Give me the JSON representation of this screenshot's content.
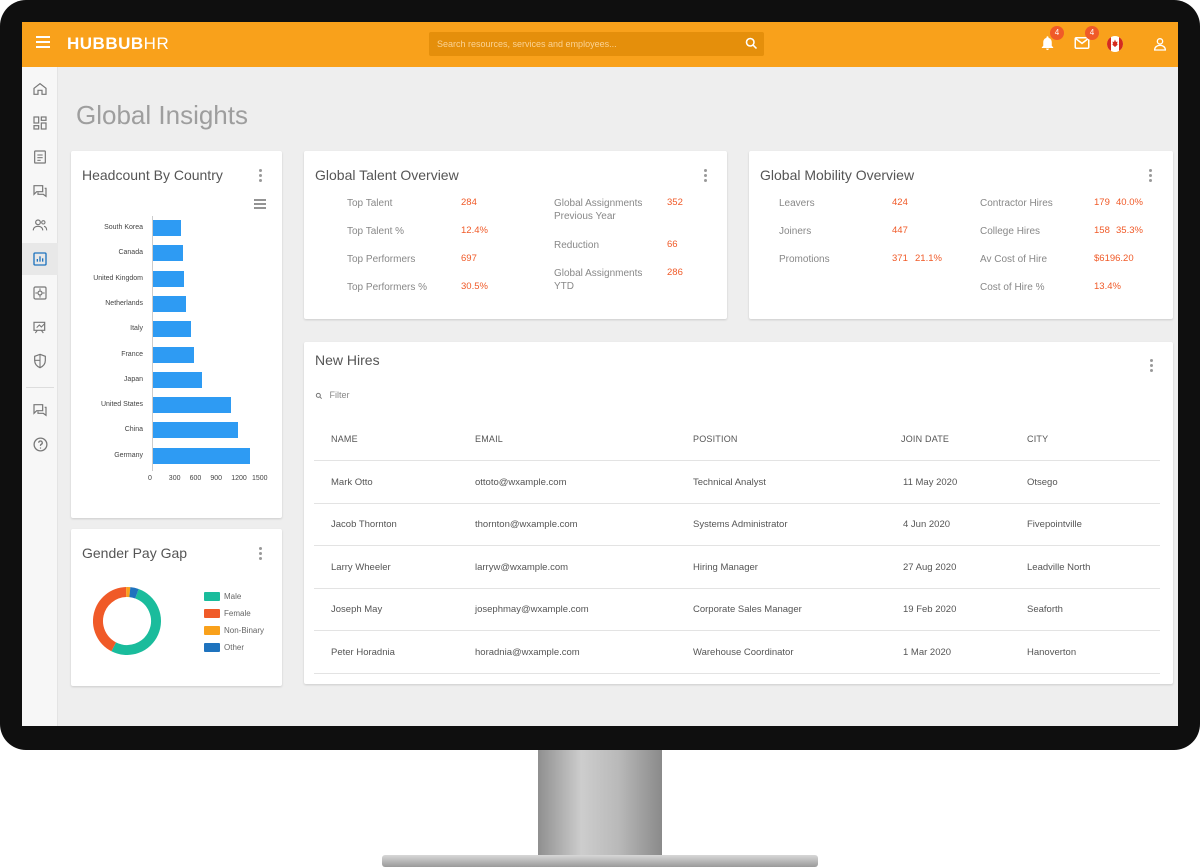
{
  "brand": {
    "name": "HUBBUBHR",
    "name_bold": "HUBBUB",
    "name_thin": "HR",
    "accent": "#f9a11b"
  },
  "search": {
    "placeholder": "Search resources, services and employees..."
  },
  "notifications": {
    "bell_count": "4",
    "mail_count": "4"
  },
  "page": {
    "title": "Global Insights"
  },
  "sidebar": {
    "items": [
      "home-icon",
      "dashboard-icon",
      "document-icon",
      "forum-icon",
      "people-icon",
      "chart-icon",
      "settings-icon",
      "learning-icon",
      "security-icon",
      "chat-icon",
      "help-icon"
    ],
    "active": "chart-icon"
  },
  "headcount": {
    "title": "Headcount By Country",
    "chart_data": {
      "type": "bar",
      "orientation": "horizontal",
      "categories": [
        "South Korea",
        "Canada",
        "United Kingdom",
        "Netherlands",
        "Italy",
        "France",
        "Japan",
        "United States",
        "China",
        "Germany"
      ],
      "values": [
        420,
        440,
        460,
        490,
        560,
        600,
        720,
        1140,
        1240,
        1420
      ],
      "xlim": [
        0,
        1500
      ],
      "xticks": [
        "0",
        "300",
        "600",
        "900",
        "1200",
        "1500"
      ],
      "color": "#2e9bf3"
    }
  },
  "pay_gap": {
    "title": "Gender Pay Gap",
    "chart_data": {
      "type": "pie",
      "donut": true,
      "labels": [
        "Male",
        "Female",
        "Non-Binary",
        "Other"
      ],
      "values": [
        52,
        42,
        2,
        4
      ],
      "colors": [
        "#1abc9c",
        "#f05a28",
        "#f9a11b",
        "#1e73be"
      ]
    }
  },
  "talent": {
    "title": "Global Talent Overview",
    "left": [
      {
        "label": "Top Talent",
        "value": "284"
      },
      {
        "label": "Top Talent %",
        "value": "12.4%"
      },
      {
        "label": "Top Performers",
        "value": "697"
      },
      {
        "label": "Top Performers %",
        "value": "30.5%"
      }
    ],
    "right": [
      {
        "label": "Global Assignments Previous Year",
        "value": "352"
      },
      {
        "label": "Reduction",
        "value": "66"
      },
      {
        "label": "Global Assignments YTD",
        "value": "286"
      }
    ]
  },
  "mobility": {
    "title": "Global Mobility Overview",
    "left": [
      {
        "label": "Leavers",
        "value": "424",
        "extra": ""
      },
      {
        "label": "Joiners",
        "value": "447",
        "extra": ""
      },
      {
        "label": "Promotions",
        "value": "371",
        "extra": "21.1%"
      }
    ],
    "right": [
      {
        "label": "Contractor Hires",
        "value": "179",
        "extra": "40.0%"
      },
      {
        "label": "College Hires",
        "value": "158",
        "extra": "35.3%"
      },
      {
        "label": "Av Cost of Hire",
        "value": "$6196.20",
        "extra": ""
      },
      {
        "label": "Cost of Hire %",
        "value": "13.4%",
        "extra": ""
      }
    ]
  },
  "new_hires": {
    "title": "New Hires",
    "filter_placeholder": "Filter",
    "columns": [
      "NAME",
      "EMAIL",
      "POSITION",
      "JOIN DATE",
      "CITY"
    ],
    "rows": [
      [
        "Mark Otto",
        "ottoto@wxample.com",
        "Technical Analyst",
        "11 May 2020",
        "Otsego"
      ],
      [
        "Jacob Thornton",
        "thornton@wxample.com",
        "Systems Administrator",
        "4 Jun 2020",
        "Fivepointville"
      ],
      [
        "Larry Wheeler",
        "larryw@wxample.com",
        "Hiring Manager",
        "27 Aug 2020",
        "Leadville North"
      ],
      [
        "Joseph May",
        "josephmay@wxample.com",
        "Corporate Sales Manager",
        "19 Feb 2020",
        "Seaforth"
      ],
      [
        "Peter Horadnia",
        "horadnia@wxample.com",
        "Warehouse Coordinator",
        "1 Mar 2020",
        "Hanoverton"
      ]
    ]
  }
}
